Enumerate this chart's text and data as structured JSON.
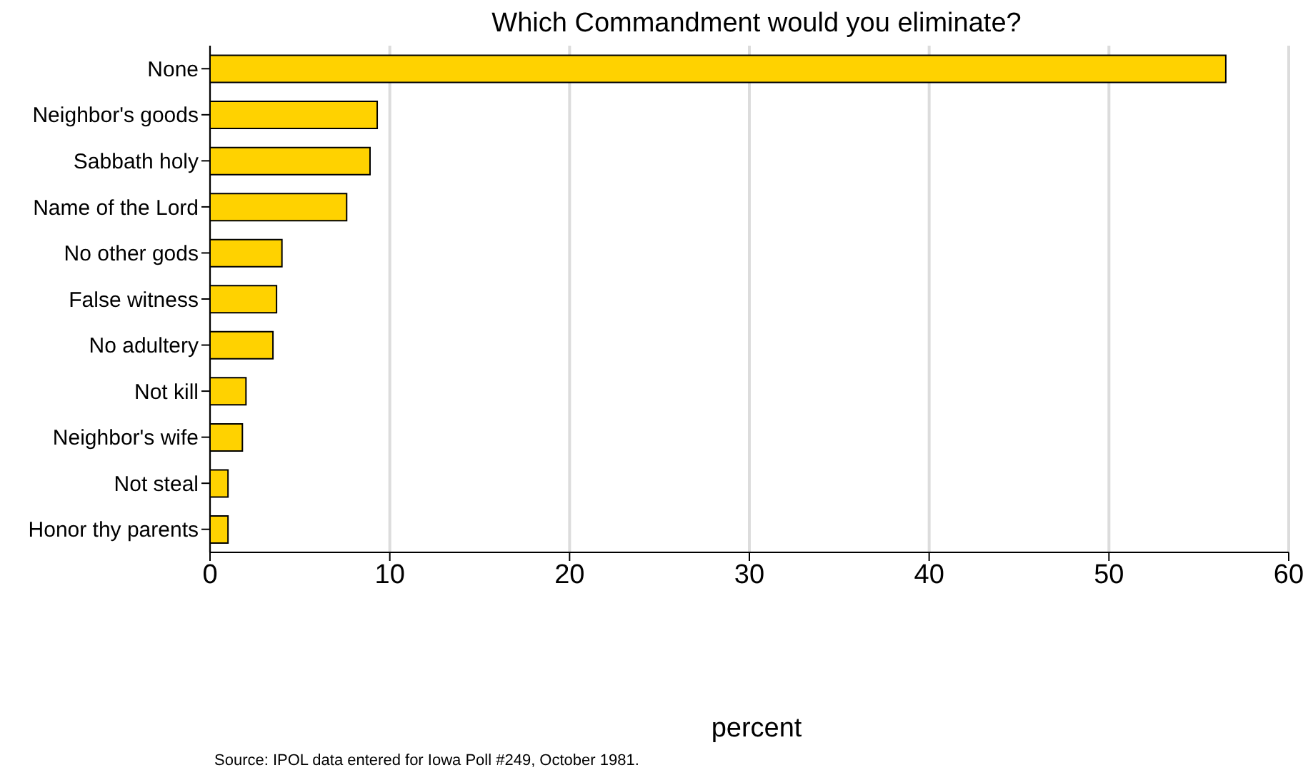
{
  "chart_data": {
    "type": "bar",
    "orientation": "horizontal",
    "title": "Which Commandment would you eliminate?",
    "xlabel": "percent",
    "categories": [
      "None",
      "Neighbor's goods",
      "Sabbath holy",
      "Name of the Lord",
      "No other gods",
      "False witness",
      "No adultery",
      "Not kill",
      "Neighbor's wife",
      "Not steal",
      "Honor thy parents"
    ],
    "values": [
      56.5,
      9.3,
      8.9,
      7.6,
      4.0,
      3.7,
      3.5,
      2.0,
      1.8,
      1.0,
      1.0
    ],
    "color": "#ffd200",
    "xlim": [
      0,
      60
    ],
    "xticks": [
      0,
      10,
      20,
      30,
      40,
      50,
      60
    ],
    "grid": "x",
    "legend": false,
    "annotations": [
      "Source: IPOL data entered for Iowa Poll #249, October 1981."
    ]
  }
}
